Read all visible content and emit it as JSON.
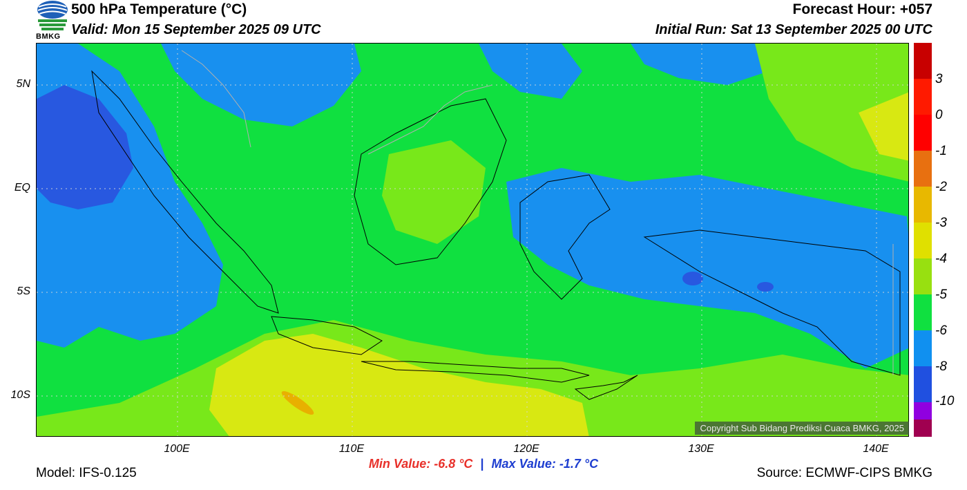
{
  "header": {
    "title": "500 hPa Temperature (°C)",
    "valid": "Valid: Mon 15 September 2025 09 UTC",
    "forecast_hour": "Forecast Hour: +057",
    "initial_run": "Initial Run: Sat 13 September 2025 00 UTC"
  },
  "logo": {
    "text": "BMKG"
  },
  "axes": {
    "lat_labels": [
      "5N",
      "EQ",
      "5S",
      "10S"
    ],
    "lon_labels": [
      "100E",
      "110E",
      "120E",
      "130E",
      "140E"
    ]
  },
  "colorbar": {
    "labels": [
      "3",
      "0",
      "-1",
      "-2",
      "-3",
      "-4",
      "-5",
      "-6",
      "-8",
      "-10"
    ],
    "colors": [
      "#c80000",
      "#d40000",
      "#ff1a00",
      "#e87010",
      "#e8b800",
      "#e0e000",
      "#98e010",
      "#10e040",
      "#1090f0",
      "#2050e0",
      "#9000e0",
      "#a00050"
    ]
  },
  "colors": {
    "t_lt_-6": "#2858e0",
    "t_-6_-5": "#1890ef",
    "t_-5_-4": "#10e040",
    "t_-4_-3": "#78e81a",
    "t_-3_-2": "#d8e812",
    "t_-2_-1": "#e8b000"
  },
  "copyright": "Copyright Sub Bidang Prediksi Cuaca BMKG, 2025",
  "stats": {
    "min": "Min Value: -6.8 °C",
    "separator": "|",
    "max": "Max Value: -1.7 °C"
  },
  "footer": {
    "model": "Model: IFS-0.125",
    "source": "Source: ECMWF-CIPS BMKG"
  }
}
